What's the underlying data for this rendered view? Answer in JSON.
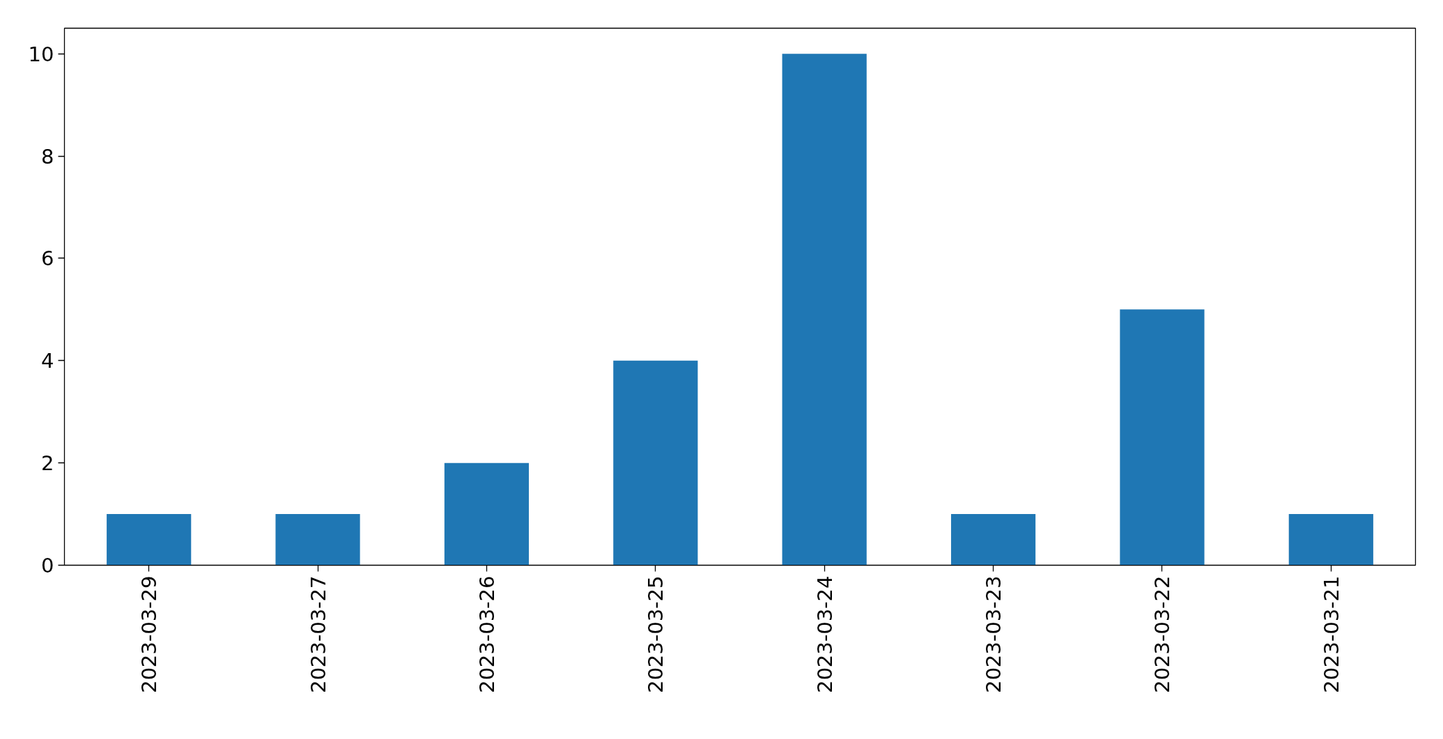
{
  "chart_data": {
    "type": "bar",
    "categories": [
      "2023-03-29",
      "2023-03-27",
      "2023-03-26",
      "2023-03-25",
      "2023-03-24",
      "2023-03-23",
      "2023-03-22",
      "2023-03-21"
    ],
    "values": [
      1,
      1,
      2,
      4,
      10,
      1,
      5,
      1
    ],
    "color": "#1f77b4",
    "ylim": [
      0,
      10.5
    ],
    "yticks": [
      0,
      2,
      4,
      6,
      8,
      10
    ],
    "grid": false
  }
}
